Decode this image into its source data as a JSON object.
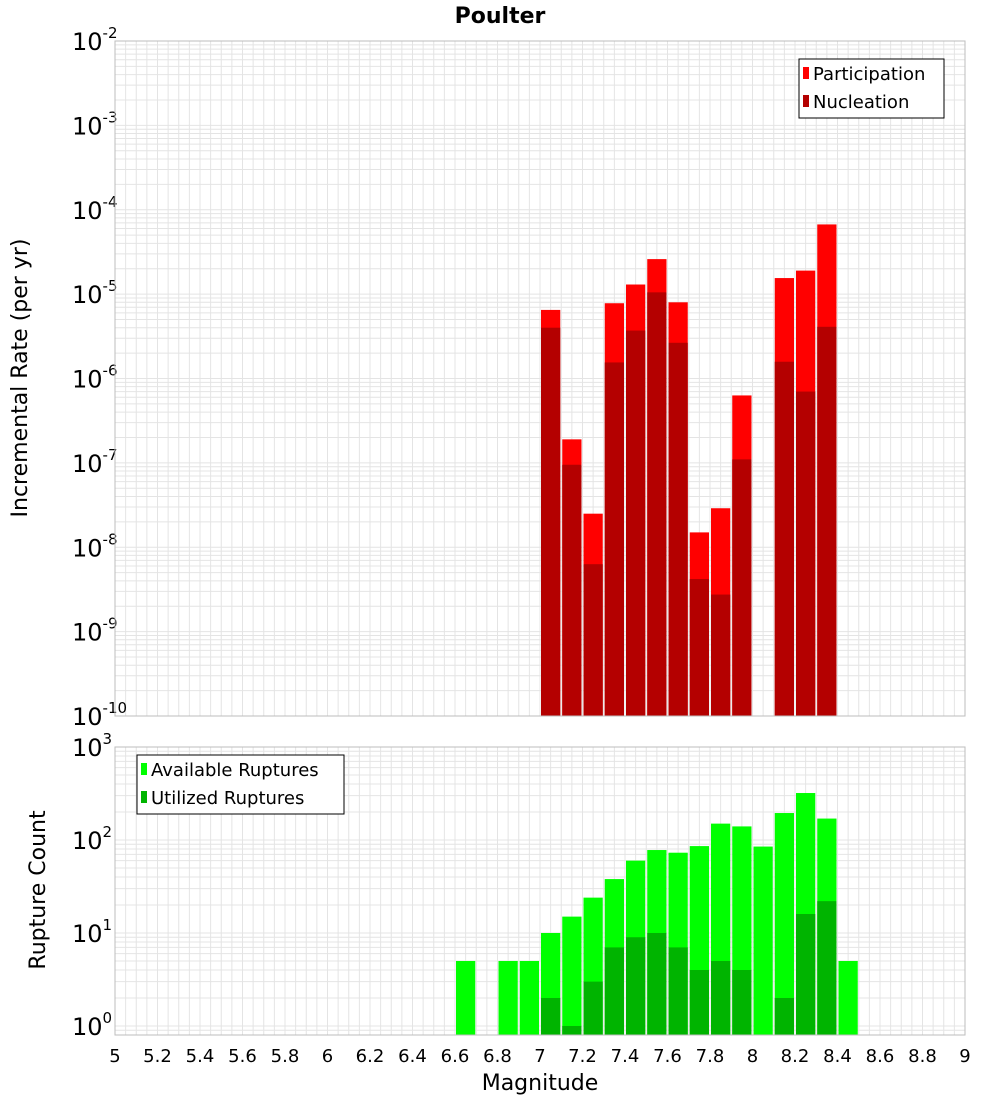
{
  "title": "Poulter",
  "xlabel": "Magnitude",
  "colors": {
    "participation": "#ff0000",
    "nucleation": "#b40000",
    "available": "#00ff00",
    "utilized": "#00b400",
    "grid": "#e4e4e4",
    "frame": "#bdbdbd"
  },
  "chart_data": [
    {
      "type": "bar",
      "panel": "top",
      "ylabel": "Incremental Rate (per yr)",
      "yscale": "log",
      "xlim": [
        5,
        9
      ],
      "ylim": [
        1e-10,
        0.01
      ],
      "grid": true,
      "legend_placement": "top-right",
      "ytick_exponents": [
        "-10",
        "-9",
        "-8",
        "-7",
        "-6",
        "-5",
        "-4",
        "-3",
        "-2"
      ],
      "x": [
        7.05,
        7.15,
        7.25,
        7.35,
        7.45,
        7.55,
        7.65,
        7.75,
        7.85,
        7.95,
        8.15,
        8.25,
        8.35
      ],
      "series": [
        {
          "name": "Participation",
          "values": [
            6.5e-06,
            1.9e-07,
            2.5e-08,
            7.8e-06,
            1.3e-05,
            2.6e-05,
            8e-06,
            1.5e-08,
            2.9e-08,
            6.3e-07,
            1.55e-05,
            1.9e-05,
            6.7e-05
          ]
        },
        {
          "name": "Nucleation",
          "values": [
            4e-06,
            9.5e-08,
            6.3e-09,
            1.55e-06,
            3.7e-06,
            1.05e-05,
            2.65e-06,
            4.2e-09,
            2.75e-09,
            1.1e-07,
            1.58e-06,
            7e-07,
            4.1e-06
          ]
        }
      ]
    },
    {
      "type": "bar",
      "panel": "bottom",
      "ylabel": "Rupture Count",
      "yscale": "log",
      "xlim": [
        5,
        9
      ],
      "ylim": [
        0.8,
        1000
      ],
      "grid": true,
      "legend_placement": "top-left",
      "ytick_exponents": [
        "0",
        "1",
        "2",
        "3"
      ],
      "x": [
        6.65,
        6.85,
        6.95,
        7.05,
        7.15,
        7.25,
        7.35,
        7.45,
        7.55,
        7.65,
        7.75,
        7.85,
        7.95,
        8.05,
        8.15,
        8.25,
        8.35,
        8.45
      ],
      "series": [
        {
          "name": "Available Ruptures",
          "values": [
            5,
            5,
            5,
            10,
            15,
            24,
            38,
            60,
            78,
            73,
            86,
            150,
            140,
            85,
            195,
            320,
            170,
            5
          ]
        },
        {
          "name": "Utilized Ruptures",
          "values": [
            0,
            0,
            0,
            2,
            1,
            3,
            7,
            9,
            10,
            7,
            4,
            5,
            4,
            0,
            2,
            16,
            22,
            0
          ]
        }
      ]
    }
  ],
  "xticks": [
    "5",
    "5.2",
    "5.4",
    "5.6",
    "5.8",
    "6",
    "6.2",
    "6.4",
    "6.6",
    "6.8",
    "7",
    "7.2",
    "7.4",
    "7.6",
    "7.8",
    "8",
    "8.2",
    "8.4",
    "8.6",
    "8.8",
    "9"
  ],
  "log_base": "10"
}
